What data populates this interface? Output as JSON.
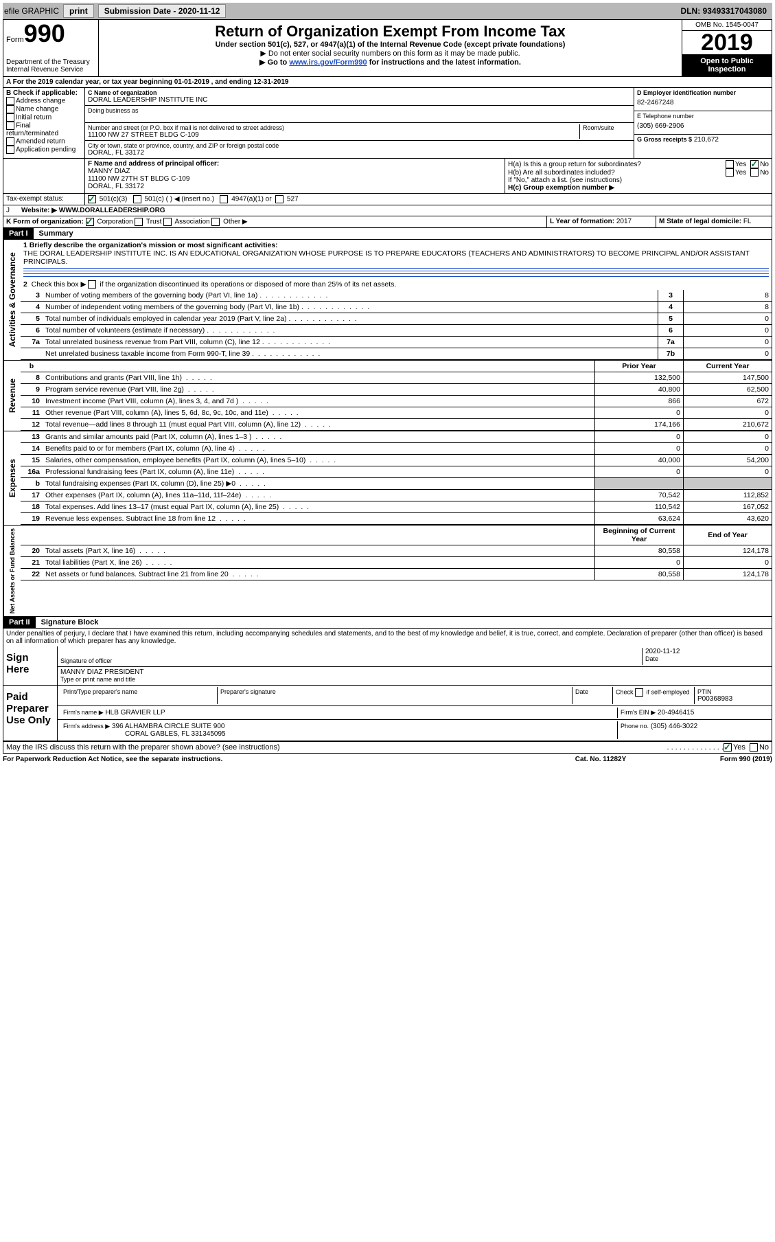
{
  "top_bar": {
    "efile": "efile GRAPHIC",
    "print": "print",
    "sub_date_label": "Submission Date -",
    "sub_date": "2020-11-12",
    "dln_label": "DLN:",
    "dln": "93493317043080"
  },
  "header": {
    "form_label": "Form",
    "form_no": "990",
    "dept": "Department of the Treasury\nInternal Revenue Service",
    "title": "Return of Organization Exempt From Income Tax",
    "sub1": "Under section 501(c), 527, or 4947(a)(1) of the Internal Revenue Code (except private foundations)",
    "sub2": "▶ Do not enter social security numbers on this form as it may be made public.",
    "sub3_pre": "▶ Go to ",
    "sub3_link": "www.irs.gov/Form990",
    "sub3_post": " for instructions and the latest information.",
    "omb": "OMB No. 1545-0047",
    "year": "2019",
    "inspect": "Open to Public Inspection"
  },
  "section_a": {
    "line": "A For the 2019 calendar year, or tax year beginning 01-01-2019   , and ending 12-31-2019"
  },
  "section_b": {
    "label": "B Check if applicable:",
    "opts": [
      "Address change",
      "Name change",
      "Initial return",
      "Final return/terminated",
      "Amended return",
      "Application pending"
    ]
  },
  "section_c": {
    "name_label": "C Name of organization",
    "name": "DORAL LEADERSHIP INSTITUTE INC",
    "dba_label": "Doing business as",
    "addr_label": "Number and street (or P.O. box if mail is not delivered to street address)",
    "room_label": "Room/suite",
    "addr": "11100 NW 27 STREET BLDG C-109",
    "city_label": "City or town, state or province, country, and ZIP or foreign postal code",
    "city": "DORAL, FL  33172"
  },
  "section_d": {
    "label": "D Employer identification number",
    "val": "82-2467248"
  },
  "section_e": {
    "label": "E Telephone number",
    "val": "(305) 669-2906"
  },
  "section_g": {
    "label": "G Gross receipts $",
    "val": "210,672"
  },
  "section_f": {
    "label": "F  Name and address of principal officer:",
    "name": "MANNY DIAZ",
    "addr1": "11100 NW 27TH ST BLDG C-109",
    "addr2": "DORAL, FL  33172"
  },
  "section_h": {
    "ha": "H(a)  Is this a group return for subordinates?",
    "hb": "H(b)  Are all subordinates included?",
    "hb_note": "If \"No,\" attach a list. (see instructions)",
    "hc": "H(c)  Group exemption number ▶",
    "yes": "Yes",
    "no": "No"
  },
  "tax_exempt": {
    "label": "Tax-exempt status:",
    "o1": "501(c)(3)",
    "o2": "501(c) (   ) ◀ (insert no.)",
    "o3": "4947(a)(1) or",
    "o4": "527"
  },
  "section_j": {
    "label": "J",
    "website_label": "Website: ▶",
    "val": "WWW.DORALLEADERSHIP.ORG"
  },
  "section_k": {
    "label": "K Form of organization:",
    "o1": "Corporation",
    "o2": "Trust",
    "o3": "Association",
    "o4": "Other ▶"
  },
  "section_l": {
    "label": "L Year of formation:",
    "val": "2017"
  },
  "section_m": {
    "label": "M State of legal domicile:",
    "val": "FL"
  },
  "part1": {
    "tag": "Part I",
    "title": "Summary",
    "line1_label": "1  Briefly describe the organization's mission or most significant activities:",
    "line1_text": "THE DORAL LEADERSHIP INSTITUTE INC. IS AN EDUCATIONAL ORGANIZATION WHOSE PURPOSE IS TO PREPARE EDUCATORS (TEACHERS AND ADMINISTRATORS) TO BECOME PRINCIPAL AND/OR ASSISTANT PRINCIPALS.",
    "line2": "2    Check this box ▶      if the organization discontinued its operations or disposed of more than 25% of its net assets.",
    "gov_label": "Activities & Governance",
    "rev_label": "Revenue",
    "exp_label": "Expenses",
    "net_label": "Net Assets or Fund Balances",
    "prior_year": "Prior Year",
    "current_year": "Current Year",
    "begin_year": "Beginning of Current Year",
    "end_year": "End of Year",
    "lines_gov": [
      {
        "n": "3",
        "t": "Number of voting members of the governing body (Part VI, line 1a)",
        "b": "3",
        "v": "8"
      },
      {
        "n": "4",
        "t": "Number of independent voting members of the governing body (Part VI, line 1b)",
        "b": "4",
        "v": "8"
      },
      {
        "n": "5",
        "t": "Total number of individuals employed in calendar year 2019 (Part V, line 2a)",
        "b": "5",
        "v": "0"
      },
      {
        "n": "6",
        "t": "Total number of volunteers (estimate if necessary)",
        "b": "6",
        "v": "0"
      },
      {
        "n": "7a",
        "t": "Total unrelated business revenue from Part VIII, column (C), line 12",
        "b": "7a",
        "v": "0"
      },
      {
        "n": "",
        "t": "Net unrelated business taxable income from Form 990-T, line 39",
        "b": "7b",
        "v": "0"
      }
    ],
    "lines_rev": [
      {
        "n": "8",
        "t": "Contributions and grants (Part VIII, line 1h)",
        "p": "132,500",
        "c": "147,500"
      },
      {
        "n": "9",
        "t": "Program service revenue (Part VIII, line 2g)",
        "p": "40,800",
        "c": "62,500"
      },
      {
        "n": "10",
        "t": "Investment income (Part VIII, column (A), lines 3, 4, and 7d )",
        "p": "866",
        "c": "672"
      },
      {
        "n": "11",
        "t": "Other revenue (Part VIII, column (A), lines 5, 6d, 8c, 9c, 10c, and 11e)",
        "p": "0",
        "c": "0"
      },
      {
        "n": "12",
        "t": "Total revenue—add lines 8 through 11 (must equal Part VIII, column (A), line 12)",
        "p": "174,166",
        "c": "210,672"
      }
    ],
    "lines_exp": [
      {
        "n": "13",
        "t": "Grants and similar amounts paid (Part IX, column (A), lines 1–3 )",
        "p": "0",
        "c": "0"
      },
      {
        "n": "14",
        "t": "Benefits paid to or for members (Part IX, column (A), line 4)",
        "p": "0",
        "c": "0"
      },
      {
        "n": "15",
        "t": "Salaries, other compensation, employee benefits (Part IX, column (A), lines 5–10)",
        "p": "40,000",
        "c": "54,200"
      },
      {
        "n": "16a",
        "t": "Professional fundraising fees (Part IX, column (A), line 11e)",
        "p": "0",
        "c": "0"
      },
      {
        "n": "b",
        "t": "Total fundraising expenses (Part IX, column (D), line 25) ▶0",
        "p": "",
        "c": "",
        "shaded": true
      },
      {
        "n": "17",
        "t": "Other expenses (Part IX, column (A), lines 11a–11d, 11f–24e)",
        "p": "70,542",
        "c": "112,852"
      },
      {
        "n": "18",
        "t": "Total expenses. Add lines 13–17 (must equal Part IX, column (A), line 25)",
        "p": "110,542",
        "c": "167,052"
      },
      {
        "n": "19",
        "t": "Revenue less expenses. Subtract line 18 from line 12",
        "p": "63,624",
        "c": "43,620"
      }
    ],
    "lines_net": [
      {
        "n": "20",
        "t": "Total assets (Part X, line 16)",
        "p": "80,558",
        "c": "124,178"
      },
      {
        "n": "21",
        "t": "Total liabilities (Part X, line 26)",
        "p": "0",
        "c": "0"
      },
      {
        "n": "22",
        "t": "Net assets or fund balances. Subtract line 21 from line 20",
        "p": "80,558",
        "c": "124,178"
      }
    ]
  },
  "part2": {
    "tag": "Part II",
    "title": "Signature Block",
    "decl": "Under penalties of perjury, I declare that I have examined this return, including accompanying schedules and statements, and to the best of my knowledge and belief, it is true, correct, and complete. Declaration of preparer (other than officer) is based on all information of which preparer has any knowledge.",
    "sign_here": "Sign Here",
    "sig_officer": "Signature of officer",
    "sig_date": "2020-11-12",
    "date_label": "Date",
    "officer_name": "MANNY DIAZ  PRESIDENT",
    "type_label": "Type or print name and title",
    "paid_prep": "Paid Preparer Use Only",
    "prep_name_label": "Print/Type preparer's name",
    "prep_sig_label": "Preparer's signature",
    "check_self": "Check       if self-employed",
    "ptin_label": "PTIN",
    "ptin": "P00368983",
    "firm_name_label": "Firm's name    ▶",
    "firm_name": "HLB GRAVIER LLP",
    "firm_ein_label": "Firm's EIN ▶",
    "firm_ein": "20-4946415",
    "firm_addr_label": "Firm's address ▶",
    "firm_addr1": "396 ALHAMBRA CIRCLE SUITE 900",
    "firm_addr2": "CORAL GABLES, FL  331345095",
    "phone_label": "Phone no.",
    "phone": "(305) 446-3022",
    "discuss": "May the IRS discuss this return with the preparer shown above? (see instructions)"
  },
  "footer": {
    "left": "For Paperwork Reduction Act Notice, see the separate instructions.",
    "mid": "Cat. No. 11282Y",
    "right": "Form 990 (2019)"
  }
}
